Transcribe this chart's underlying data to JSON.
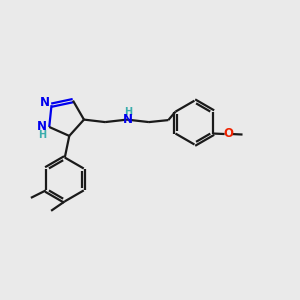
{
  "bg_color": "#eaeaea",
  "bond_color": "#1a1a1a",
  "N_color": "#0000ee",
  "O_color": "#ee2200",
  "H_color": "#3aadad",
  "line_width": 1.6,
  "font_size": 8.5,
  "fig_size": [
    3.0,
    3.0
  ],
  "dpi": 100,
  "xlim": [
    0,
    12
  ],
  "ylim": [
    0,
    12
  ]
}
